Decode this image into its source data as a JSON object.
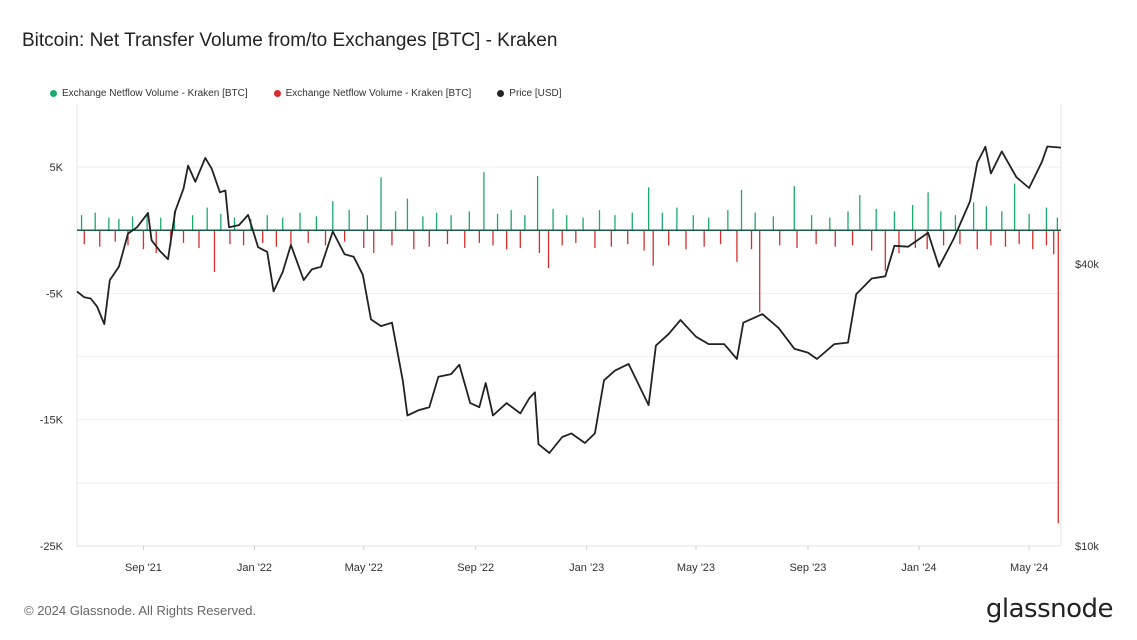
{
  "title": "Bitcoin: Net Transfer Volume from/to Exchanges [BTC] - Kraken",
  "legend": {
    "items": [
      {
        "label": "Exchange Netflow Volume - Kraken [BTC]",
        "color": "#1aaa6e"
      },
      {
        "label": "Exchange Netflow Volume - Kraken [BTC]",
        "color": "#d62d2d"
      },
      {
        "label": "Price [USD]",
        "color": "#222222"
      }
    ]
  },
  "footer": {
    "copyright": "© 2024 Glassnode. All Rights Reserved.",
    "logo": "glassnode"
  },
  "chart_data": {
    "type": "bar",
    "x_range": [
      "2021-06-20",
      "2024-06-05"
    ],
    "x_tick_labels": [
      "Sep '21",
      "Jan '22",
      "May '22",
      "Sep '22",
      "Jan '23",
      "May '23",
      "Sep '23",
      "Jan '24",
      "May '24"
    ],
    "x_tick_dates": [
      "2021-09-01",
      "2022-01-01",
      "2022-05-01",
      "2022-09-01",
      "2023-01-01",
      "2023-05-01",
      "2023-09-01",
      "2024-01-01",
      "2024-05-01"
    ],
    "y_left": {
      "label": "",
      "ticks": [
        "5K",
        "-5K",
        "-15K",
        "-25K"
      ],
      "tick_values": [
        5000,
        -5000,
        -15000,
        -25000
      ],
      "range": [
        -25000,
        10000
      ]
    },
    "y_right": {
      "label": "",
      "scale": "log",
      "ticks": [
        "$40k",
        "$10k"
      ],
      "tick_values": [
        40000,
        10000
      ],
      "range": [
        10000,
        88000
      ]
    },
    "series": [
      {
        "name": "Exchange Netflow Volume - Kraken [BTC]",
        "kind": "inflow",
        "color": "#1aaa6e",
        "points": [
          [
            "2021-06-25",
            1200
          ],
          [
            "2021-07-10",
            1400
          ],
          [
            "2021-07-25",
            1000
          ],
          [
            "2021-08-05",
            900
          ],
          [
            "2021-08-20",
            1100
          ],
          [
            "2021-09-05",
            1300
          ],
          [
            "2021-09-20",
            1000
          ],
          [
            "2021-10-05",
            1500
          ],
          [
            "2021-10-25",
            1200
          ],
          [
            "2021-11-10",
            1800
          ],
          [
            "2021-11-25",
            1300
          ],
          [
            "2021-12-10",
            1000
          ],
          [
            "2021-12-28",
            900
          ],
          [
            "2022-01-15",
            1200
          ],
          [
            "2022-02-01",
            1000
          ],
          [
            "2022-02-20",
            1400
          ],
          [
            "2022-03-10",
            1100
          ],
          [
            "2022-03-28",
            2300
          ],
          [
            "2022-04-15",
            1600
          ],
          [
            "2022-05-05",
            1200
          ],
          [
            "2022-05-20",
            4200
          ],
          [
            "2022-06-05",
            1500
          ],
          [
            "2022-06-18",
            2500
          ],
          [
            "2022-07-05",
            1100
          ],
          [
            "2022-07-20",
            1400
          ],
          [
            "2022-08-05",
            1200
          ],
          [
            "2022-08-25",
            1500
          ],
          [
            "2022-09-10",
            4600
          ],
          [
            "2022-09-25",
            1300
          ],
          [
            "2022-10-10",
            1600
          ],
          [
            "2022-10-25",
            1200
          ],
          [
            "2022-11-08",
            4300
          ],
          [
            "2022-11-25",
            1700
          ],
          [
            "2022-12-10",
            1200
          ],
          [
            "2022-12-28",
            1000
          ],
          [
            "2023-01-15",
            1600
          ],
          [
            "2023-02-01",
            1200
          ],
          [
            "2023-02-20",
            1400
          ],
          [
            "2023-03-10",
            3400
          ],
          [
            "2023-03-25",
            1400
          ],
          [
            "2023-04-10",
            1800
          ],
          [
            "2023-04-28",
            1200
          ],
          [
            "2023-05-15",
            1000
          ],
          [
            "2023-06-05",
            1600
          ],
          [
            "2023-06-20",
            3200
          ],
          [
            "2023-07-05",
            1400
          ],
          [
            "2023-07-25",
            1100
          ],
          [
            "2023-08-17",
            3500
          ],
          [
            "2023-09-05",
            1200
          ],
          [
            "2023-09-25",
            1000
          ],
          [
            "2023-10-15",
            1500
          ],
          [
            "2023-10-28",
            2800
          ],
          [
            "2023-11-15",
            1700
          ],
          [
            "2023-12-05",
            1500
          ],
          [
            "2023-12-25",
            2000
          ],
          [
            "2024-01-11",
            3000
          ],
          [
            "2024-01-25",
            1500
          ],
          [
            "2024-02-10",
            1200
          ],
          [
            "2024-03-01",
            2200
          ],
          [
            "2024-03-15",
            1900
          ],
          [
            "2024-04-01",
            1500
          ],
          [
            "2024-04-15",
            3700
          ],
          [
            "2024-05-01",
            1300
          ],
          [
            "2024-05-20",
            1800
          ],
          [
            "2024-06-01",
            1000
          ]
        ]
      },
      {
        "name": "Exchange Netflow Volume - Kraken [BTC]",
        "kind": "outflow",
        "color": "#d62d2d",
        "points": [
          [
            "2021-06-28",
            -1100
          ],
          [
            "2021-07-15",
            -1300
          ],
          [
            "2021-08-01",
            -900
          ],
          [
            "2021-08-15",
            -1200
          ],
          [
            "2021-09-01",
            -1500
          ],
          [
            "2021-09-15",
            -1800
          ],
          [
            "2021-10-01",
            -1200
          ],
          [
            "2021-10-15",
            -1000
          ],
          [
            "2021-11-01",
            -1400
          ],
          [
            "2021-11-18",
            -3300
          ],
          [
            "2021-12-05",
            -1100
          ],
          [
            "2021-12-20",
            -1200
          ],
          [
            "2022-01-10",
            -1000
          ],
          [
            "2022-01-25",
            -1300
          ],
          [
            "2022-02-10",
            -1100
          ],
          [
            "2022-03-01",
            -1000
          ],
          [
            "2022-03-20",
            -1200
          ],
          [
            "2022-04-10",
            -900
          ],
          [
            "2022-05-01",
            -1400
          ],
          [
            "2022-05-12",
            -1800
          ],
          [
            "2022-06-01",
            -1200
          ],
          [
            "2022-06-25",
            -1500
          ],
          [
            "2022-07-12",
            -1300
          ],
          [
            "2022-08-01",
            -1100
          ],
          [
            "2022-08-20",
            -1400
          ],
          [
            "2022-09-05",
            -1000
          ],
          [
            "2022-09-20",
            -1200
          ],
          [
            "2022-10-05",
            -1500
          ],
          [
            "2022-10-20",
            -1400
          ],
          [
            "2022-11-10",
            -1800
          ],
          [
            "2022-11-20",
            -3000
          ],
          [
            "2022-12-05",
            -1200
          ],
          [
            "2022-12-20",
            -1000
          ],
          [
            "2023-01-10",
            -1400
          ],
          [
            "2023-01-28",
            -1300
          ],
          [
            "2023-02-15",
            -1100
          ],
          [
            "2023-03-05",
            -1600
          ],
          [
            "2023-03-15",
            -2800
          ],
          [
            "2023-04-01",
            -1200
          ],
          [
            "2023-04-20",
            -1500
          ],
          [
            "2023-05-10",
            -1300
          ],
          [
            "2023-05-28",
            -1100
          ],
          [
            "2023-06-15",
            -2500
          ],
          [
            "2023-07-01",
            -1500
          ],
          [
            "2023-07-10",
            -6500
          ],
          [
            "2023-08-01",
            -1200
          ],
          [
            "2023-08-20",
            -1400
          ],
          [
            "2023-09-10",
            -1100
          ],
          [
            "2023-10-01",
            -1300
          ],
          [
            "2023-10-20",
            -1200
          ],
          [
            "2023-11-10",
            -1600
          ],
          [
            "2023-11-25",
            -3200
          ],
          [
            "2023-12-10",
            -1800
          ],
          [
            "2023-12-28",
            -1400
          ],
          [
            "2024-01-10",
            -1500
          ],
          [
            "2024-01-28",
            -1200
          ],
          [
            "2024-02-15",
            -1100
          ],
          [
            "2024-03-05",
            -1500
          ],
          [
            "2024-03-20",
            -1200
          ],
          [
            "2024-04-05",
            -1300
          ],
          [
            "2024-04-20",
            -1100
          ],
          [
            "2024-05-05",
            -1500
          ],
          [
            "2024-05-20",
            -1200
          ],
          [
            "2024-05-28",
            -1900
          ],
          [
            "2024-06-02",
            -23200
          ]
        ]
      },
      {
        "name": "Price [USD]",
        "kind": "price",
        "color": "#222222",
        "points": [
          [
            "2021-06-20",
            35000
          ],
          [
            "2021-06-28",
            34000
          ],
          [
            "2021-07-05",
            33800
          ],
          [
            "2021-07-12",
            32500
          ],
          [
            "2021-07-20",
            29800
          ],
          [
            "2021-07-26",
            37000
          ],
          [
            "2021-08-05",
            39500
          ],
          [
            "2021-08-15",
            46500
          ],
          [
            "2021-08-25",
            48000
          ],
          [
            "2021-09-06",
            51500
          ],
          [
            "2021-09-10",
            45000
          ],
          [
            "2021-09-20",
            42500
          ],
          [
            "2021-09-28",
            41000
          ],
          [
            "2021-10-06",
            52000
          ],
          [
            "2021-10-15",
            58000
          ],
          [
            "2021-10-20",
            65000
          ],
          [
            "2021-10-28",
            60000
          ],
          [
            "2021-11-08",
            67500
          ],
          [
            "2021-11-15",
            64000
          ],
          [
            "2021-11-24",
            57000
          ],
          [
            "2021-11-30",
            57500
          ],
          [
            "2021-12-04",
            48000
          ],
          [
            "2021-12-15",
            48500
          ],
          [
            "2021-12-25",
            51000
          ],
          [
            "2022-01-05",
            43500
          ],
          [
            "2022-01-15",
            42500
          ],
          [
            "2022-01-22",
            35000
          ],
          [
            "2022-02-01",
            38500
          ],
          [
            "2022-02-10",
            44000
          ],
          [
            "2022-02-24",
            37000
          ],
          [
            "2022-03-05",
            39000
          ],
          [
            "2022-03-15",
            39500
          ],
          [
            "2022-03-28",
            47000
          ],
          [
            "2022-04-10",
            42000
          ],
          [
            "2022-04-20",
            41500
          ],
          [
            "2022-04-30",
            38000
          ],
          [
            "2022-05-09",
            30500
          ],
          [
            "2022-05-20",
            29500
          ],
          [
            "2022-06-01",
            30000
          ],
          [
            "2022-06-13",
            22500
          ],
          [
            "2022-06-18",
            19000
          ],
          [
            "2022-06-30",
            19500
          ],
          [
            "2022-07-12",
            19800
          ],
          [
            "2022-07-22",
            23000
          ],
          [
            "2022-08-05",
            23300
          ],
          [
            "2022-08-14",
            24400
          ],
          [
            "2022-08-26",
            20200
          ],
          [
            "2022-09-05",
            19800
          ],
          [
            "2022-09-12",
            22300
          ],
          [
            "2022-09-20",
            19000
          ],
          [
            "2022-10-05",
            20200
          ],
          [
            "2022-10-20",
            19200
          ],
          [
            "2022-10-30",
            20700
          ],
          [
            "2022-11-05",
            21300
          ],
          [
            "2022-11-09",
            16500
          ],
          [
            "2022-11-21",
            15800
          ],
          [
            "2022-12-05",
            17100
          ],
          [
            "2022-12-15",
            17400
          ],
          [
            "2022-12-30",
            16600
          ],
          [
            "2023-01-10",
            17400
          ],
          [
            "2023-01-20",
            22600
          ],
          [
            "2023-02-01",
            23700
          ],
          [
            "2023-02-16",
            24500
          ],
          [
            "2023-03-10",
            20000
          ],
          [
            "2023-03-18",
            26800
          ],
          [
            "2023-04-01",
            28400
          ],
          [
            "2023-04-14",
            30400
          ],
          [
            "2023-05-01",
            28000
          ],
          [
            "2023-05-15",
            27000
          ],
          [
            "2023-06-01",
            27000
          ],
          [
            "2023-06-15",
            25100
          ],
          [
            "2023-06-22",
            30000
          ],
          [
            "2023-07-13",
            31300
          ],
          [
            "2023-07-31",
            29200
          ],
          [
            "2023-08-17",
            26400
          ],
          [
            "2023-09-01",
            25900
          ],
          [
            "2023-09-11",
            25100
          ],
          [
            "2023-09-30",
            27000
          ],
          [
            "2023-10-15",
            27200
          ],
          [
            "2023-10-24",
            34500
          ],
          [
            "2023-11-10",
            37300
          ],
          [
            "2023-11-25",
            37700
          ],
          [
            "2023-12-05",
            43800
          ],
          [
            "2023-12-20",
            43600
          ],
          [
            "2024-01-11",
            46700
          ],
          [
            "2024-01-23",
            39500
          ],
          [
            "2024-02-08",
            45300
          ],
          [
            "2024-02-26",
            54500
          ],
          [
            "2024-03-05",
            66000
          ],
          [
            "2024-03-14",
            71300
          ],
          [
            "2024-03-20",
            62500
          ],
          [
            "2024-04-01",
            69700
          ],
          [
            "2024-04-17",
            61400
          ],
          [
            "2024-05-01",
            58200
          ],
          [
            "2024-05-15",
            66200
          ],
          [
            "2024-05-21",
            71400
          ],
          [
            "2024-06-05",
            71000
          ]
        ]
      }
    ],
    "grid": true,
    "legend_position": "top-left"
  }
}
